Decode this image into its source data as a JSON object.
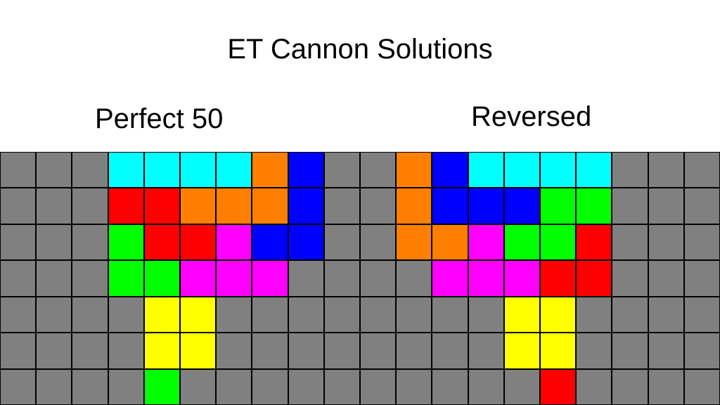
{
  "title": "ET Cannon Solutions",
  "labels": {
    "left": "Perfect 50",
    "right": "Reversed"
  },
  "colors": {
    ".": "#808080",
    "C": "#00ffff",
    "O": "#ff8000",
    "B": "#0000ff",
    "R": "#ff0000",
    "G": "#00ff00",
    "M": "#ff00ff",
    "Y": "#ffff00"
  },
  "color_names": {
    ".": "empty",
    "C": "cyan",
    "O": "orange",
    "B": "blue",
    "R": "red",
    "G": "green",
    "M": "magenta",
    "Y": "yellow"
  },
  "grid": [
    "...CCCCOB..OBCCCC...",
    "...RROOOB..OBBBGG...",
    "...GRRMBB..OOMGGR...",
    "...GGMMM....MMMRR...",
    "....YY........YY....",
    "....YY........YY....",
    "....G..........R...."
  ]
}
